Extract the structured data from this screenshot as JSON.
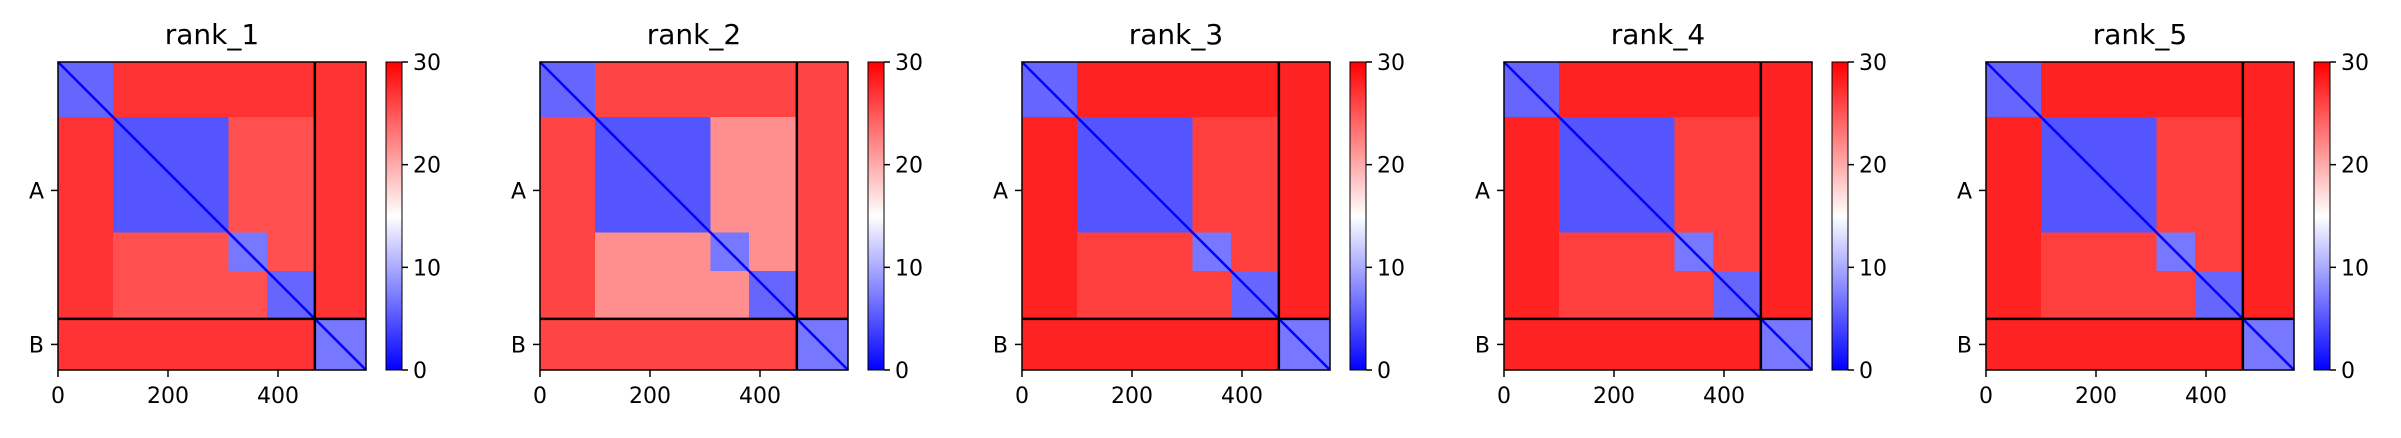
{
  "chart_data": {
    "type": "heatmap",
    "description_layout": "five PAE matrices, each with a vertical colorbar",
    "colormap": {
      "low": "#0000ff",
      "mid": "#ffffff",
      "high": "#ff0000"
    },
    "colorbar": {
      "min": 0,
      "max": 30,
      "ticks": [
        0,
        10,
        20,
        30
      ]
    },
    "x_ticks": [
      0,
      200,
      400
    ],
    "x_range": [
      0,
      560
    ],
    "chain_boundary": 467,
    "chains": [
      {
        "label": "A",
        "start": 0,
        "end": 467
      },
      {
        "label": "B",
        "start": 467,
        "end": 560
      }
    ],
    "domains": [
      [
        0,
        100
      ],
      [
        100,
        310
      ],
      [
        310,
        380
      ],
      [
        380,
        467
      ],
      [
        467,
        560
      ]
    ],
    "panels": [
      {
        "title": "rank_1",
        "offdiag_value": 27,
        "cross_domain_value": 24
      },
      {
        "title": "rank_2",
        "offdiag_value": 26,
        "cross_domain_value": 18
      },
      {
        "title": "rank_3",
        "offdiag_value": 28,
        "cross_domain_value": 25
      },
      {
        "title": "rank_4",
        "offdiag_value": 28,
        "cross_domain_value": 25
      },
      {
        "title": "rank_5",
        "offdiag_value": 28,
        "cross_domain_value": 25
      }
    ]
  }
}
